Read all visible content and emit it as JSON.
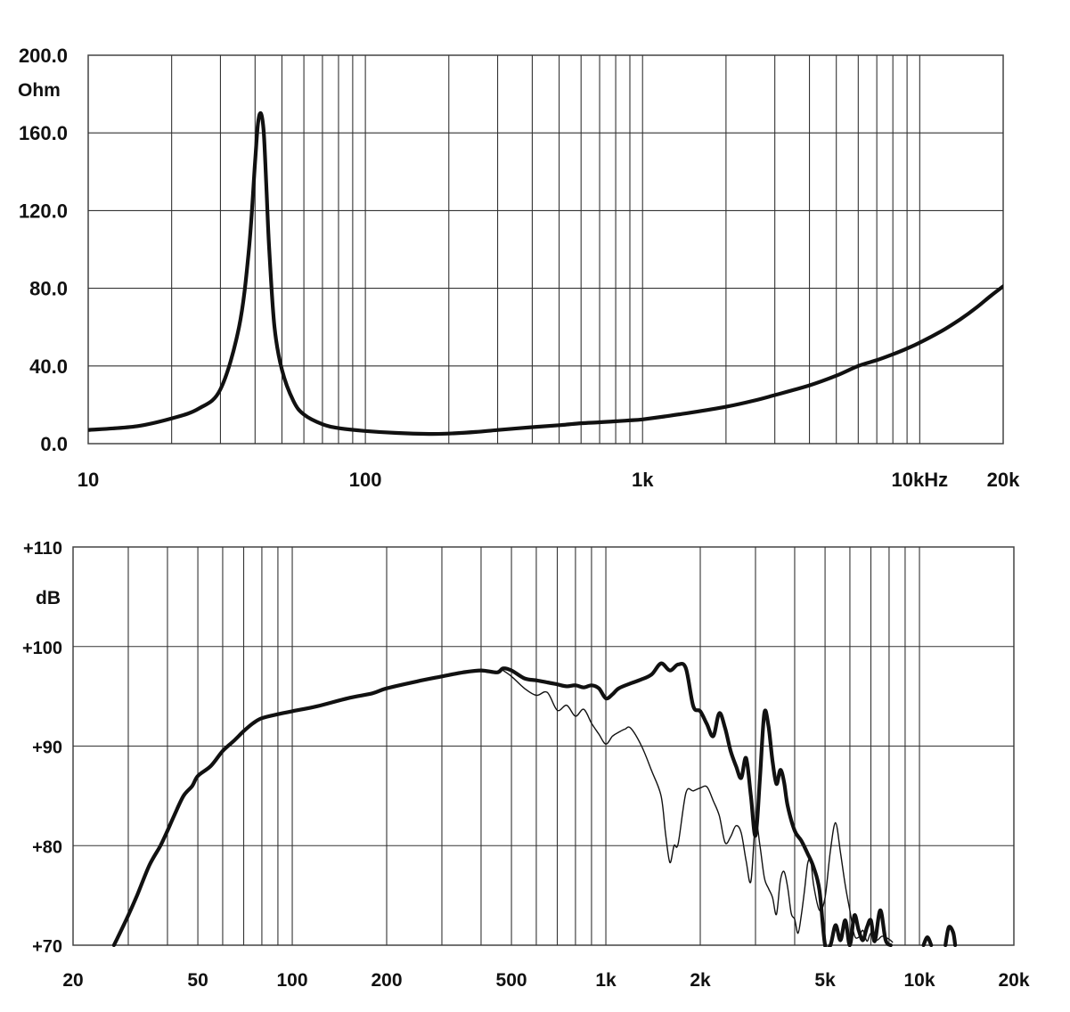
{
  "chart_data": [
    {
      "type": "line",
      "title": "",
      "xscale": "log",
      "xlim": [
        10,
        20000
      ],
      "ylim": [
        0,
        200
      ],
      "ylabel": "Ohm",
      "grid": true,
      "y_ticks": [
        {
          "value": 0,
          "label": "0.0"
        },
        {
          "value": 40,
          "label": "40.0"
        },
        {
          "value": 80,
          "label": "80.0"
        },
        {
          "value": 120,
          "label": "120.0"
        },
        {
          "value": 160,
          "label": "160.0"
        },
        {
          "value": 200,
          "label": "200.0"
        }
      ],
      "x_ticks": [
        {
          "value": 10,
          "label": "10"
        },
        {
          "value": 100,
          "label": "100"
        },
        {
          "value": 1000,
          "label": "1k"
        },
        {
          "value": 10000,
          "label": "10kHz"
        },
        {
          "value": 20000,
          "label": "20k"
        }
      ],
      "series": [
        {
          "color": "#111111",
          "x": [
            10,
            15,
            20,
            25,
            30,
            35,
            38,
            40,
            41,
            42,
            43,
            44,
            45,
            47,
            50,
            55,
            60,
            70,
            80,
            100,
            130,
            170,
            200,
            250,
            300,
            400,
            500,
            600,
            700,
            800,
            900,
            1000,
            1200,
            1500,
            2000,
            2500,
            3000,
            4000,
            5000,
            6000,
            7000,
            8000,
            9000,
            10000,
            12000,
            14000,
            16000,
            18000,
            20000
          ],
          "values": [
            7,
            9,
            13,
            18,
            28,
            60,
            100,
            145,
            165,
            170,
            160,
            130,
            100,
            60,
            38,
            22,
            15,
            10,
            8,
            6.5,
            5.5,
            5,
            5.2,
            6,
            7,
            8.5,
            9.5,
            10.5,
            11,
            11.5,
            12,
            12.5,
            14,
            16,
            19,
            22,
            25,
            30,
            35,
            40,
            43,
            46,
            49,
            52,
            58,
            64,
            70,
            76,
            81
          ]
        }
      ]
    },
    {
      "type": "line",
      "title": "",
      "xscale": "log",
      "xlim": [
        20,
        20000
      ],
      "ylim": [
        70,
        110
      ],
      "ylabel": "dB",
      "grid": true,
      "y_ticks": [
        {
          "value": 70,
          "label": "+70"
        },
        {
          "value": 80,
          "label": "+80"
        },
        {
          "value": 90,
          "label": "+90"
        },
        {
          "value": 100,
          "label": "+100"
        },
        {
          "value": 110,
          "label": "+110"
        }
      ],
      "x_ticks": [
        {
          "value": 20,
          "label": "20"
        },
        {
          "value": 50,
          "label": "50"
        },
        {
          "value": 100,
          "label": "100"
        },
        {
          "value": 200,
          "label": "200"
        },
        {
          "value": 500,
          "label": "500"
        },
        {
          "value": 1000,
          "label": "1k"
        },
        {
          "value": 2000,
          "label": "2k"
        },
        {
          "value": 5000,
          "label": "5k"
        },
        {
          "value": 10000,
          "label": "10k"
        },
        {
          "value": 20000,
          "label": "20k"
        }
      ],
      "series": [
        {
          "color": "#111111",
          "weight": "thick",
          "x": [
            27,
            28,
            30,
            32,
            35,
            38,
            40,
            42,
            45,
            48,
            50,
            55,
            60,
            65,
            70,
            75,
            80,
            90,
            100,
            120,
            150,
            180,
            200,
            250,
            300,
            350,
            400,
            450,
            470,
            500,
            550,
            600,
            650,
            700,
            750,
            800,
            850,
            900,
            950,
            1000,
            1050,
            1100,
            1200,
            1300,
            1400,
            1500,
            1600,
            1700,
            1800,
            1900,
            2000,
            2100,
            2200,
            2300,
            2400,
            2500,
            2600,
            2700,
            2800,
            2900,
            3000,
            3100,
            3200,
            3300,
            3400,
            3500,
            3600,
            3700,
            3800,
            4000,
            4200,
            4400,
            4600,
            4800,
            5000,
            5200,
            5400,
            5600,
            5800,
            6000,
            6200,
            6400,
            6600,
            6800,
            7000,
            7200,
            7500,
            7800,
            8100
          ],
          "values": [
            70,
            71,
            73,
            75,
            78,
            80,
            81.5,
            83,
            85,
            86,
            87,
            88,
            89.5,
            90.5,
            91.5,
            92.3,
            92.8,
            93.2,
            93.5,
            94,
            94.8,
            95.3,
            95.8,
            96.5,
            97,
            97.4,
            97.6,
            97.4,
            97.8,
            97.6,
            96.8,
            96.6,
            96.4,
            96.2,
            96,
            96.1,
            95.9,
            96.1,
            95.8,
            94.8,
            95.2,
            95.8,
            96.3,
            96.7,
            97.2,
            98.3,
            97.6,
            98.2,
            97.8,
            94,
            93.5,
            92.2,
            91,
            93.3,
            91.8,
            89.5,
            88,
            86.8,
            88.8,
            85,
            81,
            86.8,
            93.3,
            92,
            88.5,
            86.2,
            87.6,
            86.4,
            84,
            81.5,
            80.5,
            79.2,
            77.8,
            75.5,
            70,
            70,
            72,
            70.5,
            72.5,
            70,
            73,
            71.5,
            70.5,
            71.8,
            72.5,
            70.4,
            73.5,
            70.5,
            70
          ],
          "segments_after": [
            {
              "x": [
                10300,
                10600,
                10900
              ],
              "values": [
                70,
                70.8,
                70
              ]
            },
            {
              "x": [
                12100,
                12400,
                12800,
                13000
              ],
              "values": [
                70,
                71.8,
                71.3,
                70
              ]
            }
          ]
        },
        {
          "color": "#111111",
          "weight": "thin",
          "x": [
            470,
            500,
            550,
            600,
            650,
            700,
            750,
            800,
            850,
            900,
            950,
            1000,
            1050,
            1100,
            1150,
            1200,
            1300,
            1400,
            1500,
            1550,
            1600,
            1650,
            1700,
            1800,
            1900,
            2000,
            2100,
            2200,
            2300,
            2400,
            2500,
            2600,
            2700,
            2800,
            2900,
            3000,
            3100,
            3200,
            3300,
            3400,
            3500,
            3600,
            3700,
            3800,
            3900,
            4000,
            4100,
            4200,
            4300,
            4400,
            4500,
            4600,
            4800,
            5000,
            5200,
            5400,
            5600,
            5800,
            6000,
            6200,
            6400,
            6600,
            6800,
            7000,
            7300,
            7600,
            8000,
            8200
          ],
          "values": [
            97.6,
            97,
            95.8,
            95.1,
            95.4,
            93.6,
            94.1,
            93,
            93.7,
            92.3,
            91.2,
            90.2,
            91,
            91.4,
            91.7,
            91.8,
            90,
            87.5,
            85,
            81.2,
            78.3,
            80,
            80.2,
            85.3,
            85.5,
            85.8,
            85.9,
            84.5,
            83,
            80.3,
            80.9,
            82,
            81.3,
            78.5,
            76.4,
            82.3,
            80,
            76.8,
            75.7,
            74.8,
            73.1,
            76.5,
            77.4,
            75.8,
            73.2,
            72.6,
            71.2,
            73,
            75.5,
            78.2,
            78.5,
            76,
            73.5,
            74.8,
            79.5,
            82.3,
            79.3,
            76,
            73.5,
            71,
            70.8,
            71.5,
            70.4,
            71.2,
            70.5,
            70.9,
            70.6,
            70.3
          ]
        }
      ]
    }
  ]
}
